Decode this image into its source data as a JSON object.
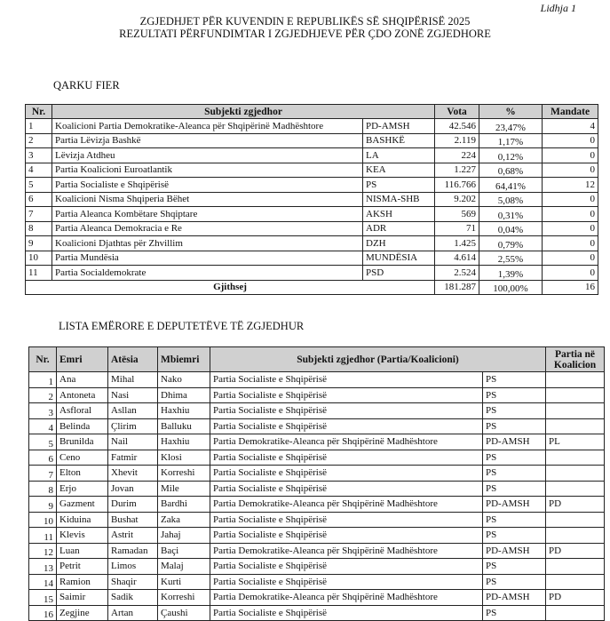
{
  "header": {
    "annex": "Lidhja 1",
    "title": "ZGJEDHJET PËR KUVENDIN E REPUBLIKËS SË SHQIPËRISË 2025",
    "subtitle": "REZULTATI PËRFUNDIMTAR I ZGJEDHJEVE PËR ÇDO ZONË ZGJEDHORE"
  },
  "results": {
    "section": "QARKU FIER",
    "columns": {
      "nr": "Nr.",
      "subject": "Subjekti zgjedhor",
      "votes": "Vota",
      "percent": "%",
      "mandates": "Mandate"
    },
    "rows": [
      {
        "nr": "1",
        "name": "Koalicioni Partia Demokratike-Aleanca për Shqipërinë Madhështore",
        "abbr": "PD-AMSH",
        "votes": "42.546",
        "percent": "23,47%",
        "mandates": "4"
      },
      {
        "nr": "2",
        "name": "Partia Lëvizja Bashkë",
        "abbr": "BASHKË",
        "votes": "2.119",
        "percent": "1,17%",
        "mandates": "0"
      },
      {
        "nr": "3",
        "name": "Lëvizja Atdheu",
        "abbr": "LA",
        "votes": "224",
        "percent": "0,12%",
        "mandates": "0"
      },
      {
        "nr": "4",
        "name": "Partia Koalicioni Euroatlantik",
        "abbr": "KEA",
        "votes": "1.227",
        "percent": "0,68%",
        "mandates": "0"
      },
      {
        "nr": "5",
        "name": "Partia Socialiste e Shqipërisë",
        "abbr": "PS",
        "votes": "116.766",
        "percent": "64,41%",
        "mandates": "12"
      },
      {
        "nr": "6",
        "name": "Koalicioni Nisma Shqiperia Bëhet",
        "abbr": "NISMA-SHB",
        "votes": "9.202",
        "percent": "5,08%",
        "mandates": "0"
      },
      {
        "nr": "7",
        "name": "Partia Aleanca Kombëtare Shqiptare",
        "abbr": "AKSH",
        "votes": "569",
        "percent": "0,31%",
        "mandates": "0"
      },
      {
        "nr": "8",
        "name": "Partia Aleanca Demokracia e Re",
        "abbr": "ADR",
        "votes": "71",
        "percent": "0,04%",
        "mandates": "0"
      },
      {
        "nr": "9",
        "name": "Koalicioni Djathtas për Zhvillim",
        "abbr": "DZH",
        "votes": "1.425",
        "percent": "0,79%",
        "mandates": "0"
      },
      {
        "nr": "10",
        "name": "Partia Mundësia",
        "abbr": "MUNDËSIA",
        "votes": "4.614",
        "percent": "2,55%",
        "mandates": "0"
      },
      {
        "nr": "11",
        "name": "Partia Socialdemokrate",
        "abbr": "PSD",
        "votes": "2.524",
        "percent": "1,39%",
        "mandates": "0"
      }
    ],
    "total": {
      "label": "Gjithsej",
      "votes": "181.287",
      "percent": "100,00%",
      "mandates": "16"
    }
  },
  "deputies": {
    "section": "LISTA EMËRORE E DEPUTETËVE TË ZGJEDHUR",
    "columns": {
      "nr": "Nr.",
      "first": "Emri",
      "father": "Atësia",
      "last": "Mbiemri",
      "subject": "Subjekti  zgjedhor (Partia/Koalicioni)",
      "coalition_l1": "Partia në",
      "coalition_l2": "Koalicion"
    },
    "rows": [
      {
        "nr": "1",
        "first": "Ana",
        "father": "Mihal",
        "last": "Nako",
        "subject": "Partia Socialiste e Shqipërisë",
        "abbr": "PS",
        "coalition": ""
      },
      {
        "nr": "2",
        "first": "Antoneta",
        "father": "Nasi",
        "last": "Dhima",
        "subject": "Partia Socialiste e Shqipërisë",
        "abbr": "PS",
        "coalition": ""
      },
      {
        "nr": "3",
        "first": "Asfloral",
        "father": "Asllan",
        "last": "Haxhiu",
        "subject": "Partia Socialiste e Shqipërisë",
        "abbr": "PS",
        "coalition": ""
      },
      {
        "nr": "4",
        "first": "Belinda",
        "father": "Çlirim",
        "last": "Balluku",
        "subject": "Partia Socialiste e Shqipërisë",
        "abbr": "PS",
        "coalition": ""
      },
      {
        "nr": "5",
        "first": "Brunilda",
        "father": "Nail",
        "last": "Haxhiu",
        "subject": "Partia Demokratike-Aleanca për Shqipërinë Madhështore",
        "abbr": "PD-AMSH",
        "coalition": "PL"
      },
      {
        "nr": "6",
        "first": "Ceno",
        "father": "Fatmir",
        "last": "Klosi",
        "subject": "Partia Socialiste e Shqipërisë",
        "abbr": "PS",
        "coalition": ""
      },
      {
        "nr": "7",
        "first": "Elton",
        "father": "Xhevit",
        "last": "Korreshi",
        "subject": "Partia Socialiste e Shqipërisë",
        "abbr": "PS",
        "coalition": ""
      },
      {
        "nr": "8",
        "first": "Erjo",
        "father": "Jovan",
        "last": "Mile",
        "subject": "Partia Socialiste e Shqipërisë",
        "abbr": "PS",
        "coalition": ""
      },
      {
        "nr": "9",
        "first": "Gazment",
        "father": "Durim",
        "last": "Bardhi",
        "subject": "Partia Demokratike-Aleanca për Shqipërinë Madhështore",
        "abbr": "PD-AMSH",
        "coalition": "PD"
      },
      {
        "nr": "10",
        "first": "Kiduina",
        "father": "Bushat",
        "last": "Zaka",
        "subject": "Partia Socialiste e Shqipërisë",
        "abbr": "PS",
        "coalition": ""
      },
      {
        "nr": "11",
        "first": "Klevis",
        "father": "Astrit",
        "last": "Jahaj",
        "subject": "Partia Socialiste e Shqipërisë",
        "abbr": "PS",
        "coalition": ""
      },
      {
        "nr": "12",
        "first": "Luan",
        "father": "Ramadan",
        "last": "Baçi",
        "subject": "Partia Demokratike-Aleanca për Shqipërinë Madhështore",
        "abbr": "PD-AMSH",
        "coalition": "PD"
      },
      {
        "nr": "13",
        "first": "Petrit",
        "father": "Limos",
        "last": "Malaj",
        "subject": "Partia Socialiste e Shqipërisë",
        "abbr": "PS",
        "coalition": ""
      },
      {
        "nr": "14",
        "first": "Ramion",
        "father": "Shaqir",
        "last": "Kurti",
        "subject": "Partia Socialiste e Shqipërisë",
        "abbr": "PS",
        "coalition": ""
      },
      {
        "nr": "15",
        "first": "Saimir",
        "father": "Sadik",
        "last": "Korreshi",
        "subject": "Partia Demokratike-Aleanca për Shqipërinë Madhështore",
        "abbr": "PD-AMSH",
        "coalition": "PD"
      },
      {
        "nr": "16",
        "first": "Zegjine",
        "father": "Artan",
        "last": "Çaushi",
        "subject": "Partia Socialiste e Shqipërisë",
        "abbr": "PS",
        "coalition": ""
      }
    ]
  },
  "colors": {
    "header_bg": "#d0d0d0",
    "border": "#222222"
  }
}
